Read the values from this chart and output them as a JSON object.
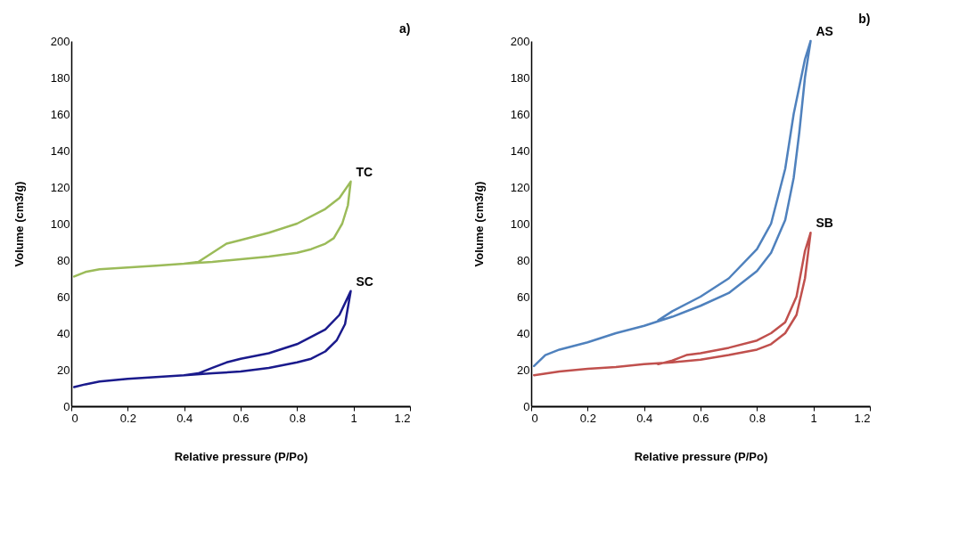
{
  "chart_data": [
    {
      "type": "line",
      "annotations": [
        "a)"
      ],
      "xlabel": "Relative pressure (P/Po)",
      "ylabel": "Volume (cm3/g)",
      "xlim": [
        0,
        1.2
      ],
      "xticks": [
        0,
        0.2,
        0.4,
        0.6,
        0.8,
        1,
        1.2
      ],
      "ylim": [
        0,
        200
      ],
      "yticks": [
        0,
        20,
        40,
        60,
        80,
        100,
        120,
        140,
        160,
        180,
        200
      ],
      "grid": false,
      "legend": false,
      "marker": "none",
      "series": [
        {
          "name": "TC",
          "color": "#9bbb59",
          "x": [
            0.01,
            0.05,
            0.1,
            0.2,
            0.3,
            0.4,
            0.5,
            0.6,
            0.7,
            0.8,
            0.85,
            0.9,
            0.93,
            0.96,
            0.98,
            0.99,
            0.95,
            0.9,
            0.8,
            0.7,
            0.6,
            0.55,
            0.5,
            0.45,
            0.4
          ],
          "values": [
            71,
            73.5,
            75,
            76,
            77,
            78,
            79,
            80.5,
            82,
            84,
            86,
            89,
            92,
            100,
            110,
            123,
            114,
            108,
            100,
            95,
            91,
            89,
            84,
            79,
            78
          ]
        },
        {
          "name": "SC",
          "color": "#1a1a8c",
          "x": [
            0.01,
            0.05,
            0.1,
            0.2,
            0.3,
            0.4,
            0.5,
            0.6,
            0.7,
            0.8,
            0.85,
            0.9,
            0.94,
            0.97,
            0.99,
            0.95,
            0.9,
            0.8,
            0.7,
            0.6,
            0.55,
            0.5,
            0.45,
            0.4
          ],
          "values": [
            10.5,
            12,
            13.5,
            15,
            16,
            17,
            18,
            19,
            21,
            24,
            26,
            30,
            36,
            45,
            63,
            50,
            42,
            34,
            29,
            26,
            24,
            21,
            18,
            17
          ]
        }
      ]
    },
    {
      "type": "line",
      "annotations": [
        "b)"
      ],
      "xlabel": "Relative pressure (P/Po)",
      "ylabel": "Volume (cm3/g)",
      "xlim": [
        0,
        1.2
      ],
      "xticks": [
        0,
        0.2,
        0.4,
        0.6,
        0.8,
        1,
        1.2
      ],
      "ylim": [
        0,
        200
      ],
      "yticks": [
        0,
        20,
        40,
        60,
        80,
        100,
        120,
        140,
        160,
        180,
        200
      ],
      "grid": false,
      "legend": false,
      "marker": "none",
      "series": [
        {
          "name": "AS",
          "color": "#4f81bd",
          "x": [
            0.01,
            0.05,
            0.1,
            0.2,
            0.3,
            0.4,
            0.5,
            0.6,
            0.7,
            0.8,
            0.85,
            0.9,
            0.93,
            0.95,
            0.97,
            0.99,
            0.97,
            0.95,
            0.93,
            0.9,
            0.85,
            0.8,
            0.7,
            0.6,
            0.5,
            0.45
          ],
          "values": [
            22,
            28,
            31,
            35,
            40,
            44,
            49,
            55,
            62,
            74,
            84,
            102,
            125,
            150,
            180,
            200,
            190,
            175,
            160,
            130,
            100,
            86,
            70,
            60,
            52,
            47
          ]
        },
        {
          "name": "SB",
          "color": "#c0504d",
          "x": [
            0.01,
            0.1,
            0.2,
            0.3,
            0.4,
            0.5,
            0.6,
            0.7,
            0.8,
            0.85,
            0.9,
            0.94,
            0.97,
            0.99,
            0.97,
            0.94,
            0.9,
            0.85,
            0.8,
            0.7,
            0.6,
            0.55,
            0.5,
            0.45
          ],
          "values": [
            17,
            19,
            20.5,
            21.5,
            23,
            24,
            25.5,
            28,
            31,
            34,
            40,
            50,
            70,
            95,
            85,
            60,
            46,
            40,
            36,
            32,
            29,
            28,
            25,
            23
          ]
        }
      ]
    }
  ]
}
